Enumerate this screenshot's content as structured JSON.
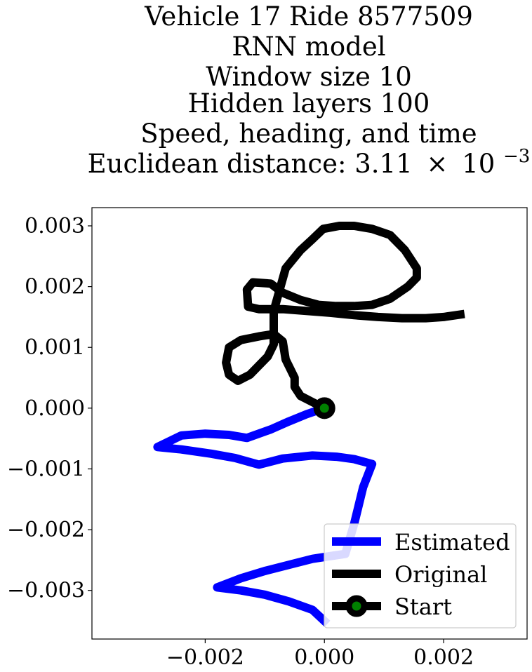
{
  "chart_data": {
    "type": "line",
    "title_lines": [
      "Vehicle 17 Ride 8577509",
      "RNN model",
      "Window size 10",
      "Hidden layers 100",
      "Speed, heading, and time"
    ],
    "title_distance_prefix": "Euclidean distance: 3.11",
    "title_distance_times": "×",
    "title_distance_base": "10",
    "title_distance_exponent": "−3",
    "xlabel": "",
    "ylabel": "",
    "xlim": [
      -0.0039,
      0.0034
    ],
    "ylim": [
      -0.0038,
      0.0033
    ],
    "x_ticks": [
      {
        "value": -0.002,
        "label": "−0.002"
      },
      {
        "value": 0.0,
        "label": "0.000"
      },
      {
        "value": 0.002,
        "label": "0.002"
      }
    ],
    "y_ticks": [
      {
        "value": 0.003,
        "label": "0.003"
      },
      {
        "value": 0.002,
        "label": "0.002"
      },
      {
        "value": 0.001,
        "label": "0.001"
      },
      {
        "value": 0.0,
        "label": "0.000"
      },
      {
        "value": -0.001,
        "label": "−0.001"
      },
      {
        "value": -0.002,
        "label": "−0.002"
      },
      {
        "value": -0.003,
        "label": "−0.003"
      }
    ],
    "grid": false,
    "legend_position": "bottom-right",
    "series": [
      {
        "name": "Estimated",
        "color": "#0000ff",
        "x": [
          0.0,
          -0.0003,
          -0.0006,
          -0.0009,
          -0.0013,
          -0.0016,
          -0.002,
          -0.0024,
          -0.0028,
          -0.0024,
          -0.0019,
          -0.0015,
          -0.0011,
          -0.0007,
          -0.0002,
          0.0002,
          0.0005,
          0.0008,
          0.00065,
          0.0005,
          0.00035,
          0.0002,
          -0.0002,
          -0.0006,
          -0.001,
          -0.0014,
          -0.0018,
          -0.0014,
          -0.001,
          -0.0006,
          -0.0002,
          5e-05
        ],
        "y": [
          0.0,
          -0.0001,
          -0.00022,
          -0.00035,
          -0.00049,
          -0.00044,
          -0.00042,
          -0.00045,
          -0.00064,
          -0.00068,
          -0.00075,
          -0.00082,
          -0.00093,
          -0.00083,
          -0.00078,
          -0.0008,
          -0.00084,
          -0.00092,
          -0.0013,
          -0.0019,
          -0.0024,
          -0.00242,
          -0.00248,
          -0.00258,
          -0.00268,
          -0.0028,
          -0.00295,
          -0.003,
          -0.00307,
          -0.00318,
          -0.00332,
          -0.00355
        ]
      },
      {
        "name": "Original",
        "color": "#000000",
        "x": [
          0.0,
          -0.0002,
          -0.0004,
          -0.0005,
          -0.0005,
          -0.00065,
          -0.0007,
          -0.00085,
          -0.0011,
          -0.0014,
          -0.0016,
          -0.00165,
          -0.0016,
          -0.00145,
          -0.00125,
          -0.00095,
          -0.00085,
          -0.00085,
          -0.00065,
          -0.0004,
          -0.0002,
          -2e-05,
          0.00025,
          0.0005,
          0.0008,
          0.0011,
          0.00135,
          0.00155,
          0.00155,
          0.0014,
          0.0011,
          0.0008,
          0.0005,
          0.0002,
          -0.0001,
          -0.0004,
          -0.0007,
          -0.0009,
          -0.0012,
          -0.0013,
          -0.00128,
          -0.0011,
          -0.0007,
          -0.0003,
          0.0001,
          0.0005,
          0.0009,
          0.0013,
          0.0017,
          0.002,
          0.00235
        ],
        "y": [
          0.0,
          0.0001,
          0.0002,
          0.00035,
          0.0005,
          0.0008,
          0.0011,
          0.00122,
          0.00118,
          0.00112,
          0.001,
          0.00075,
          0.00055,
          0.00045,
          0.00055,
          0.00085,
          0.00105,
          0.0016,
          0.0023,
          0.0026,
          0.00278,
          0.00295,
          0.003,
          0.003,
          0.00295,
          0.00285,
          0.0026,
          0.0023,
          0.00215,
          0.002,
          0.0018,
          0.0017,
          0.00168,
          0.00168,
          0.0017,
          0.00178,
          0.0019,
          0.00205,
          0.00207,
          0.00195,
          0.00167,
          0.00163,
          0.00163,
          0.0016,
          0.00157,
          0.00153,
          0.0015,
          0.00148,
          0.00148,
          0.0015,
          0.00155
        ]
      }
    ],
    "start_point": {
      "name": "Start",
      "x": 0.0,
      "y": 0.0,
      "fill_color": "#008000",
      "edge_color": "#000000"
    }
  }
}
